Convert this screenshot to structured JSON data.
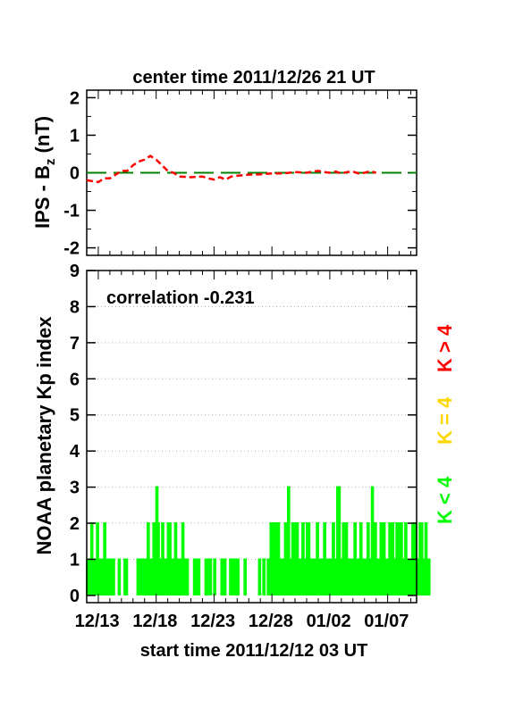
{
  "title": "center time 2011/12/26 21 UT",
  "subtitle": "start time 2011/12/12 03 UT",
  "colors": {
    "bz_line": "#ff0000",
    "zero_line": "#008000",
    "k_low": "#00ff00",
    "k_mid": "#ffd700",
    "k_high": "#ff0000"
  },
  "legend": {
    "low": "K < 4",
    "mid": "K = 4",
    "high": "K > 4"
  },
  "chart_data": [
    {
      "type": "line",
      "ylabel_main": "IPS - B",
      "ylabel_sub": "z",
      "ylabel_unit": " (nT)",
      "ylim": [
        -2.2,
        2.2
      ],
      "yticks": [
        2,
        1,
        0,
        -1,
        -2
      ],
      "xlim": [
        0,
        28.5
      ],
      "series": [
        {
          "role": "ips",
          "x": [
            0,
            1,
            1.5,
            2,
            2.5,
            3,
            3.5,
            4,
            4.5,
            5,
            5.5,
            6,
            6.5,
            7,
            7.5,
            8,
            9,
            10,
            10.5,
            11,
            11.5,
            12,
            12.5,
            13,
            14,
            15,
            16,
            17,
            18,
            19,
            19.5,
            20,
            20.5,
            21,
            21.5,
            22,
            22.5,
            23,
            23.5,
            24,
            24.5,
            25
          ],
          "y": [
            -0.2,
            -0.25,
            -0.15,
            -0.15,
            -0.05,
            0.05,
            0.05,
            0.2,
            0.3,
            0.35,
            0.45,
            0.35,
            0.2,
            0.05,
            0.0,
            -0.1,
            -0.12,
            -0.1,
            -0.15,
            -0.18,
            -0.12,
            -0.18,
            -0.1,
            -0.08,
            -0.05,
            -0.04,
            -0.02,
            -0.02,
            0.02,
            0.0,
            0.03,
            0.05,
            0.02,
            0.0,
            0.03,
            -0.02,
            0.02,
            0.03,
            -0.02,
            0.0,
            0.04,
            0.0
          ]
        },
        {
          "role": "zero",
          "x": [
            0,
            28.5
          ],
          "y": [
            0,
            0
          ]
        }
      ]
    },
    {
      "type": "bar",
      "ylabel": "NOAA planetary Kp index",
      "ylim": [
        -0.2,
        9
      ],
      "yticks": [
        0,
        1,
        2,
        3,
        4,
        5,
        6,
        7,
        8,
        9
      ],
      "xtick_labels": [
        "12/13",
        "12/18",
        "12/23",
        "12/28",
        "01/02",
        "01/07"
      ],
      "xtick_days": [
        0.9,
        5.9,
        10.9,
        15.9,
        20.9,
        25.9
      ],
      "xlim": [
        0,
        28.5
      ],
      "correlation": "correlation -0.231",
      "kp_step_days": 0.125,
      "kp": [
        1,
        1,
        1,
        2,
        1,
        1,
        1,
        2,
        1,
        1,
        1,
        1,
        2,
        1,
        0,
        1,
        1,
        1,
        1,
        0,
        0,
        0,
        1,
        0,
        0,
        0,
        1,
        1,
        0,
        0,
        0,
        0,
        0,
        0,
        0,
        1,
        0,
        1,
        0,
        1,
        1,
        1,
        2,
        1,
        1,
        1,
        2,
        1,
        3,
        2,
        1,
        1,
        2,
        1,
        1,
        1,
        2,
        2,
        1,
        1,
        1,
        2,
        1,
        1,
        1,
        1,
        2,
        1,
        1,
        1,
        0,
        0,
        0,
        0,
        1,
        1,
        0,
        1,
        0,
        0,
        0,
        0,
        1,
        1,
        0,
        1,
        0,
        0,
        1,
        0,
        0,
        0,
        0,
        1,
        1,
        1,
        0,
        0,
        0,
        1,
        0,
        1,
        0,
        1,
        1,
        0,
        0,
        0,
        0,
        1,
        0,
        0,
        0,
        0,
        0,
        0,
        0,
        0,
        0,
        1,
        0,
        0,
        1,
        0,
        0,
        1,
        1,
        2,
        1,
        2,
        2,
        1,
        2,
        1,
        1,
        1,
        1,
        2,
        1,
        3,
        1,
        1,
        2,
        2,
        1,
        2,
        1,
        1,
        1,
        2,
        1,
        1,
        2,
        2,
        1,
        1,
        1,
        1,
        1,
        2,
        1,
        1,
        1,
        1,
        2,
        1,
        1,
        1,
        1,
        1,
        2,
        1,
        1,
        3,
        3,
        1,
        1,
        2,
        2,
        2,
        1,
        1,
        1,
        1,
        1,
        2,
        1,
        1,
        1,
        2,
        1,
        1,
        1,
        1,
        2,
        1,
        1,
        3,
        2,
        2,
        1,
        1,
        1,
        2,
        2,
        2,
        1,
        1,
        1,
        2,
        1,
        2,
        1,
        1,
        2,
        2,
        1,
        2,
        1,
        1,
        2,
        1,
        1,
        1,
        1,
        2,
        1,
        2,
        1,
        1,
        2,
        2,
        1,
        1,
        2,
        1,
        1
      ]
    }
  ]
}
